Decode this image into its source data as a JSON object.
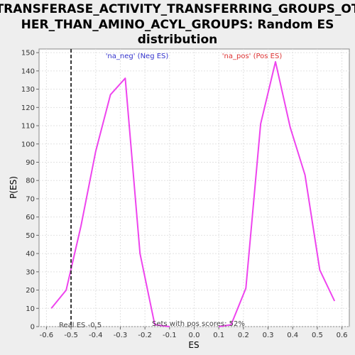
{
  "chart_data": {
    "type": "line",
    "title_lines": [
      "TRANSFERASE_ACTIVITY_TRANSFERRING_GROUPS_OT",
      "HER_THAN_AMINO_ACYL_GROUPS: Random ES",
      "distribution"
    ],
    "xlabel": "ES",
    "ylabel": "P(ES)",
    "xlim": [
      -0.63,
      0.63
    ],
    "ylim": [
      0,
      152
    ],
    "x_ticks": [
      -0.6,
      -0.5,
      -0.4,
      -0.3,
      -0.2,
      -0.1,
      0.0,
      0.1,
      0.2,
      0.3,
      0.4,
      0.5,
      0.6
    ],
    "x_tick_labels": [
      "-0.6",
      "-0.5",
      "-0.4",
      "-0.3",
      "-0.2",
      "-0.1",
      "0.0",
      "0.1",
      "0.2",
      "0.3",
      "0.4",
      "0.5",
      "0.6"
    ],
    "y_ticks": [
      0,
      10,
      20,
      30,
      40,
      50,
      60,
      70,
      80,
      90,
      100,
      110,
      120,
      130,
      140,
      150
    ],
    "y_tick_labels": [
      "0",
      "10",
      "20",
      "30",
      "40",
      "50",
      "60",
      "70",
      "80",
      "90",
      "100",
      "110",
      "120",
      "130",
      "140",
      "150"
    ],
    "grid": true,
    "line_color": "#ee44ee",
    "series": [
      {
        "name": "'na_neg' (Neg ES)",
        "label_color": "#3333cc",
        "x": [
          -0.58,
          -0.52,
          -0.46,
          -0.4,
          -0.34,
          -0.28,
          -0.22,
          -0.16,
          -0.1
        ],
        "y": [
          10,
          20,
          55,
          96,
          127,
          136,
          40,
          1,
          0
        ]
      },
      {
        "name": "'na_pos' (Pos ES)",
        "label_color": "#dd3333",
        "x": [
          0.1,
          0.15,
          0.21,
          0.27,
          0.33,
          0.39,
          0.45,
          0.51,
          0.57
        ],
        "y": [
          0,
          1,
          21,
          111,
          145,
          109,
          83,
          31,
          14
        ]
      }
    ],
    "real_es": {
      "value": -0.5,
      "label": "Real ES -0.5"
    },
    "pos_scores_text": "Sets with pos scores: 52%"
  }
}
